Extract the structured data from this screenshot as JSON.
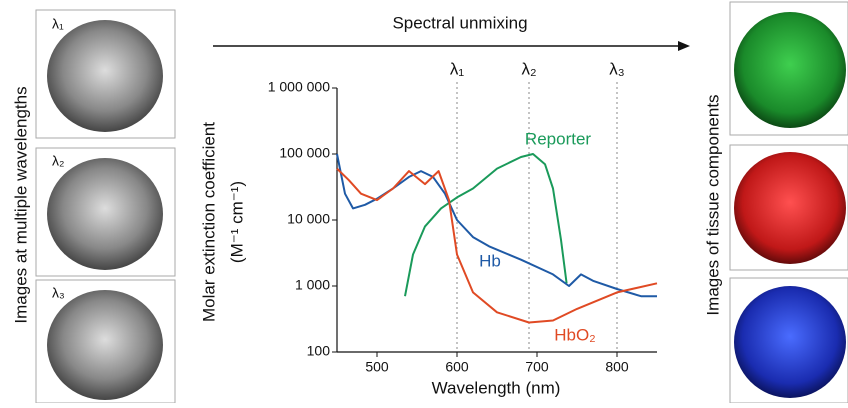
{
  "chart_data": {
    "type": "line",
    "title": "Spectral unmixing",
    "left_label": "Images at multiple wavelengths",
    "right_label": "Images of tissue components",
    "x_label": "Wavelength (nm)",
    "y_label": [
      "Molar extinction coefficient",
      "(M⁻¹ cm⁻¹)"
    ],
    "xlim": [
      450,
      850
    ],
    "xticks": [
      500,
      600,
      700,
      800
    ],
    "ylim": [
      100,
      1000000
    ],
    "y_scale": "log",
    "yticks": [
      100,
      {
        "value": 1000,
        "label": "1 000"
      },
      {
        "value": 10000,
        "label": "10 000"
      },
      {
        "value": 100000,
        "label": "100 000"
      },
      {
        "value": 1000000,
        "label": "1 000 000"
      }
    ],
    "markers": [
      {
        "label": "λ₁",
        "x": 600
      },
      {
        "label": "λ₂",
        "x": 690
      },
      {
        "label": "λ₃",
        "x": 800
      }
    ],
    "series": [
      {
        "name": "Reporter",
        "color": "#1a9a5a",
        "x": [
          535,
          545,
          560,
          580,
          600,
          620,
          650,
          680,
          695,
          710,
          720,
          730,
          737
        ],
        "values": [
          700,
          3000,
          8000,
          15000,
          22000,
          30000,
          60000,
          90000,
          100000,
          70000,
          30000,
          5000,
          1100
        ]
      },
      {
        "name": "Hb",
        "color": "#1f5aa6",
        "x": [
          450,
          460,
          470,
          485,
          500,
          520,
          540,
          555,
          570,
          585,
          600,
          620,
          640,
          680,
          720,
          740,
          755,
          770,
          800,
          830,
          850
        ],
        "values": [
          100000,
          25000,
          15000,
          17000,
          21000,
          30000,
          45000,
          55000,
          45000,
          25000,
          10000,
          5500,
          4000,
          2500,
          1500,
          1000,
          1500,
          1200,
          900,
          700,
          700
        ]
      },
      {
        "name": "HbO₂",
        "color": "#e04a24",
        "x": [
          450,
          465,
          480,
          500,
          520,
          540,
          560,
          577,
          590,
          600,
          620,
          650,
          690,
          720,
          750,
          800,
          850
        ],
        "values": [
          60000,
          40000,
          25000,
          20000,
          30000,
          55000,
          35000,
          55000,
          20000,
          3000,
          800,
          400,
          280,
          300,
          450,
          800,
          1100
        ]
      }
    ]
  }
}
